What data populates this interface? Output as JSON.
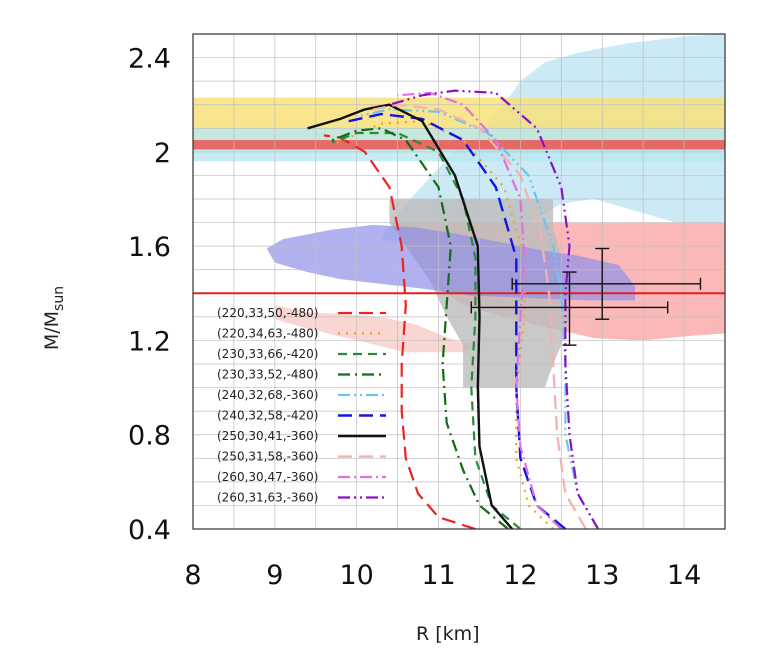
{
  "chart_data": {
    "type": "line",
    "title": "",
    "xlabel": "R [km]",
    "ylabel": "M/M",
    "ylabel_sub": "sun",
    "xlim": [
      8,
      14.5
    ],
    "ylim": [
      0.4,
      2.5
    ],
    "x_ticks": [
      "8",
      "9",
      "10",
      "11",
      "12",
      "13",
      "14"
    ],
    "y_ticks": [
      "0.4",
      "0.8",
      "1.2",
      "1.6",
      "2",
      "2.4"
    ],
    "grid": true,
    "legend_position": "lower-left",
    "bands": [
      {
        "name": "yellow band",
        "y": [
          2.01,
          2.23
        ],
        "color": "#f8e07a",
        "opacity": 0.85
      },
      {
        "name": "cyan band",
        "y": [
          1.96,
          2.1
        ],
        "color": "#b8e7f0",
        "opacity": 0.8
      },
      {
        "name": "red band",
        "y": [
          2.01,
          2.05
        ],
        "color": "#f04040",
        "opacity": 0.75
      }
    ],
    "regions": [
      {
        "name": "light blue region",
        "color": "#a9dcf0",
        "opacity": 0.6,
        "points": [
          [
            10.3,
            1.63
          ],
          [
            10.6,
            1.78
          ],
          [
            11.0,
            1.93
          ],
          [
            11.3,
            2.04
          ],
          [
            11.6,
            2.12
          ],
          [
            11.8,
            2.2
          ],
          [
            12.0,
            2.3
          ],
          [
            12.3,
            2.38
          ],
          [
            12.7,
            2.42
          ],
          [
            13.3,
            2.46
          ],
          [
            14.0,
            2.49
          ],
          [
            14.5,
            2.5
          ],
          [
            14.5,
            1.7
          ],
          [
            13.9,
            1.7
          ],
          [
            13.4,
            1.75
          ],
          [
            12.9,
            1.8
          ],
          [
            12.5,
            1.78
          ],
          [
            12.1,
            1.7
          ],
          [
            11.6,
            1.66
          ],
          [
            11.0,
            1.63
          ],
          [
            10.6,
            1.61
          ]
        ]
      },
      {
        "name": "pink region",
        "color": "#f8c8c4",
        "opacity": 0.75,
        "points": [
          [
            9.0,
            1.35
          ],
          [
            9.4,
            1.32
          ],
          [
            9.9,
            1.31
          ],
          [
            10.3,
            1.3
          ],
          [
            10.7,
            1.27
          ],
          [
            11.2,
            1.2
          ],
          [
            11.5,
            1.18
          ],
          [
            11.3,
            1.15
          ],
          [
            10.6,
            1.15
          ],
          [
            10.0,
            1.2
          ],
          [
            9.4,
            1.25
          ],
          [
            9.0,
            1.29
          ]
        ]
      },
      {
        "name": "salmon region",
        "color": "#f8a0a0",
        "opacity": 0.75,
        "points": [
          [
            10.4,
            1.7
          ],
          [
            14.5,
            1.7
          ],
          [
            14.5,
            1.23
          ],
          [
            14.1,
            1.22
          ],
          [
            13.5,
            1.2
          ],
          [
            12.9,
            1.21
          ],
          [
            12.4,
            1.25
          ],
          [
            11.8,
            1.3
          ],
          [
            11.3,
            1.35
          ],
          [
            10.9,
            1.45
          ],
          [
            10.6,
            1.6
          ]
        ]
      },
      {
        "name": "gray region",
        "color": "#bcbcbc",
        "opacity": 0.8,
        "points": [
          [
            10.4,
            1.8
          ],
          [
            12.4,
            1.8
          ],
          [
            12.4,
            1.68
          ],
          [
            12.5,
            1.55
          ],
          [
            12.6,
            1.3
          ],
          [
            12.5,
            1.18
          ],
          [
            12.4,
            1.1
          ],
          [
            12.3,
            1.0
          ],
          [
            11.3,
            1.0
          ],
          [
            11.3,
            1.18
          ],
          [
            11.1,
            1.3
          ],
          [
            10.9,
            1.45
          ],
          [
            10.7,
            1.55
          ],
          [
            10.4,
            1.7
          ]
        ]
      },
      {
        "name": "blue region",
        "color": "#9090e8",
        "opacity": 0.7,
        "points": [
          [
            8.9,
            1.59
          ],
          [
            9.1,
            1.63
          ],
          [
            9.7,
            1.67
          ],
          [
            10.2,
            1.69
          ],
          [
            10.7,
            1.68
          ],
          [
            11.1,
            1.66
          ],
          [
            11.7,
            1.62
          ],
          [
            12.3,
            1.58
          ],
          [
            12.7,
            1.56
          ],
          [
            13.2,
            1.52
          ],
          [
            13.4,
            1.43
          ],
          [
            13.4,
            1.37
          ],
          [
            12.8,
            1.37
          ],
          [
            12.1,
            1.38
          ],
          [
            11.4,
            1.39
          ],
          [
            10.8,
            1.42
          ],
          [
            10.3,
            1.44
          ],
          [
            9.8,
            1.46
          ],
          [
            9.4,
            1.49
          ],
          [
            9.0,
            1.53
          ]
        ]
      }
    ],
    "reference_line": {
      "name": "red horizontal line",
      "y": 1.4,
      "color": "#e02020"
    },
    "error_bars": [
      {
        "x": 12.6,
        "y": 1.34,
        "xerr": [
          11.4,
          13.8
        ],
        "yerr": [
          1.18,
          1.49
        ]
      },
      {
        "x": 13.0,
        "y": 1.44,
        "xerr": [
          11.9,
          14.2
        ],
        "yerr": [
          1.29,
          1.59
        ]
      }
    ],
    "series": [
      {
        "name": "(220,33,50,-480)",
        "color": "#ee2222",
        "dash": "14,7",
        "width": 2.2,
        "points": [
          [
            11.45,
            0.4
          ],
          [
            11.0,
            0.45
          ],
          [
            10.75,
            0.55
          ],
          [
            10.6,
            0.7
          ],
          [
            10.55,
            0.9
          ],
          [
            10.55,
            1.1
          ],
          [
            10.6,
            1.35
          ],
          [
            10.55,
            1.6
          ],
          [
            10.4,
            1.85
          ],
          [
            10.1,
            2.0
          ],
          [
            9.8,
            2.06
          ],
          [
            9.6,
            2.07
          ]
        ]
      },
      {
        "name": "(220,34,63,-480)",
        "color": "#f0a030",
        "dash": "2,6",
        "width": 2.2,
        "points": [
          [
            12.4,
            0.4
          ],
          [
            12.1,
            0.5
          ],
          [
            11.95,
            0.7
          ],
          [
            11.95,
            1.0
          ],
          [
            12.05,
            1.3
          ],
          [
            12.05,
            1.55
          ],
          [
            11.8,
            1.85
          ],
          [
            11.3,
            2.05
          ],
          [
            10.8,
            2.13
          ],
          [
            10.3,
            2.12
          ],
          [
            9.7,
            2.03
          ]
        ]
      },
      {
        "name": "(230,33,66,-420)",
        "color": "#2a8a3a",
        "dash": "9,6",
        "width": 2.2,
        "points": [
          [
            12.0,
            0.4
          ],
          [
            11.65,
            0.5
          ],
          [
            11.45,
            0.7
          ],
          [
            11.4,
            1.0
          ],
          [
            11.45,
            1.3
          ],
          [
            11.45,
            1.55
          ],
          [
            11.3,
            1.8
          ],
          [
            11.0,
            2.0
          ],
          [
            10.5,
            2.08
          ],
          [
            10.0,
            2.08
          ],
          [
            9.7,
            2.04
          ]
        ]
      },
      {
        "name": "(230,33,52,-480)",
        "color": "#136b13",
        "dash": "12,5,2,5",
        "width": 2.2,
        "points": [
          [
            11.85,
            0.4
          ],
          [
            11.5,
            0.5
          ],
          [
            11.3,
            0.65
          ],
          [
            11.1,
            0.85
          ],
          [
            11.05,
            1.1
          ],
          [
            11.1,
            1.35
          ],
          [
            11.15,
            1.6
          ],
          [
            11.0,
            1.85
          ],
          [
            10.6,
            2.05
          ],
          [
            10.3,
            2.1
          ],
          [
            10.0,
            2.09
          ],
          [
            9.7,
            2.05
          ]
        ]
      },
      {
        "name": "(240,32,68,-360)",
        "color": "#6cc6e8",
        "dash": "12,4,2,4,2,4",
        "width": 2.2,
        "points": [
          [
            12.95,
            0.4
          ],
          [
            12.7,
            0.55
          ],
          [
            12.55,
            0.8
          ],
          [
            12.55,
            1.1
          ],
          [
            12.5,
            1.4
          ],
          [
            12.4,
            1.6
          ],
          [
            12.1,
            1.9
          ],
          [
            11.6,
            2.08
          ],
          [
            11.0,
            2.17
          ],
          [
            10.4,
            2.18
          ],
          [
            10.0,
            2.15
          ]
        ]
      },
      {
        "name": "(240,32,58,-420)",
        "color": "#1515e0",
        "dash": "14,7",
        "width": 2.4,
        "points": [
          [
            12.55,
            0.4
          ],
          [
            12.2,
            0.5
          ],
          [
            12.0,
            0.7
          ],
          [
            11.95,
            1.0
          ],
          [
            11.95,
            1.3
          ],
          [
            11.95,
            1.55
          ],
          [
            11.7,
            1.85
          ],
          [
            11.3,
            2.05
          ],
          [
            10.8,
            2.14
          ],
          [
            10.3,
            2.16
          ],
          [
            9.9,
            2.13
          ]
        ]
      },
      {
        "name": "(250,30,41,-360)",
        "color": "#111111",
        "dash": "",
        "width": 2.4,
        "points": [
          [
            11.9,
            0.4
          ],
          [
            11.65,
            0.5
          ],
          [
            11.5,
            0.75
          ],
          [
            11.48,
            1.0
          ],
          [
            11.5,
            1.3
          ],
          [
            11.48,
            1.6
          ],
          [
            11.2,
            1.9
          ],
          [
            10.8,
            2.13
          ],
          [
            10.4,
            2.2
          ],
          [
            10.1,
            2.18
          ],
          [
            9.8,
            2.14
          ],
          [
            9.4,
            2.1
          ]
        ]
      },
      {
        "name": "(250,31,58,-360)",
        "color": "#f4b0b0",
        "dash": "14,7",
        "width": 2.2,
        "points": [
          [
            12.8,
            0.4
          ],
          [
            12.55,
            0.55
          ],
          [
            12.45,
            0.8
          ],
          [
            12.4,
            1.1
          ],
          [
            12.35,
            1.4
          ],
          [
            12.25,
            1.65
          ],
          [
            12.0,
            1.9
          ],
          [
            11.5,
            2.1
          ],
          [
            11.0,
            2.18
          ],
          [
            10.5,
            2.2
          ],
          [
            10.2,
            2.18
          ]
        ]
      },
      {
        "name": "(260,30,47,-360)",
        "color": "#e070e0",
        "dash": "12,4,2,4",
        "width": 2.2,
        "points": [
          [
            12.5,
            0.4
          ],
          [
            12.2,
            0.5
          ],
          [
            12.0,
            0.75
          ],
          [
            11.95,
            1.0
          ],
          [
            12.0,
            1.3
          ],
          [
            12.05,
            1.55
          ],
          [
            12.0,
            1.8
          ],
          [
            11.7,
            2.05
          ],
          [
            11.3,
            2.2
          ],
          [
            10.9,
            2.25
          ],
          [
            10.5,
            2.24
          ]
        ]
      },
      {
        "name": "(260,31,63,-360)",
        "color": "#8a10c8",
        "dash": "12,4,2,4,2,4",
        "width": 2.2,
        "points": [
          [
            12.95,
            0.4
          ],
          [
            12.7,
            0.55
          ],
          [
            12.6,
            0.8
          ],
          [
            12.55,
            1.1
          ],
          [
            12.55,
            1.4
          ],
          [
            12.6,
            1.6
          ],
          [
            12.5,
            1.85
          ],
          [
            12.2,
            2.1
          ],
          [
            11.7,
            2.25
          ],
          [
            11.2,
            2.26
          ],
          [
            10.8,
            2.24
          ],
          [
            10.4,
            2.2
          ]
        ]
      }
    ]
  }
}
